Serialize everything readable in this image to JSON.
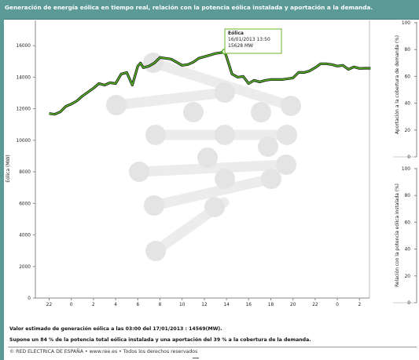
{
  "header": {
    "title": "Generación de energía eólica en tiempo real, relación con la potencia eólica instalada y aportación a la demanda."
  },
  "colors": {
    "header_bg": "#5b9a96",
    "line": "#52b41e",
    "line_shadow": "#1b1b1b",
    "tooltip_border": "#6ab42e",
    "watermark": "#e6e6e6"
  },
  "chart_data": {
    "type": "line",
    "ylabel": "Eólica (MW)",
    "ylim": [
      0,
      17600
    ],
    "yticks": [
      "0",
      "2000",
      "4000",
      "6000",
      "8000",
      "10000",
      "12000",
      "14000",
      "16000"
    ],
    "xticks": [
      "22",
      "0",
      "2",
      "4",
      "6",
      "8",
      "10",
      "12",
      "14",
      "16",
      "18",
      "20",
      "22",
      "0",
      "2"
    ],
    "series": [
      {
        "name": "Eólica",
        "x": [
          22.0,
          22.5,
          23.0,
          23.5,
          24.0,
          24.5,
          25.0,
          25.5,
          26.0,
          26.5,
          27.0,
          27.5,
          28.0,
          28.5,
          29.0,
          29.5,
          30.0,
          30.25,
          30.5,
          31.0,
          31.5,
          32.0,
          32.5,
          33.0,
          33.5,
          34.0,
          34.5,
          35.0,
          35.5,
          36.0,
          36.5,
          37.0,
          37.5,
          37.83,
          38.0,
          38.5,
          39.0,
          39.5,
          40.0,
          40.5,
          41.0,
          41.5,
          42.0,
          42.5,
          43.0,
          43.5,
          44.0,
          44.5,
          45.0,
          45.5,
          46.0,
          46.5,
          47.0,
          47.5,
          48.0,
          48.5,
          49.0,
          49.5,
          50.0,
          50.5,
          51.0
        ],
        "values": [
          11700,
          11650,
          11800,
          12150,
          12300,
          12500,
          12800,
          13050,
          13300,
          13600,
          13500,
          13650,
          13600,
          14200,
          14300,
          13500,
          14700,
          14900,
          14600,
          14700,
          14900,
          15250,
          15200,
          15150,
          14950,
          14750,
          14800,
          14950,
          15200,
          15300,
          15400,
          15500,
          15550,
          15628,
          15300,
          14200,
          14000,
          14050,
          13600,
          13800,
          13700,
          13800,
          13850,
          13850,
          13850,
          13900,
          13950,
          14300,
          14300,
          14400,
          14600,
          14850,
          14850,
          14800,
          14700,
          14750,
          14500,
          14650,
          14550,
          14569,
          14569
        ]
      }
    ],
    "right_axis_top": {
      "label": "Aportación a la cobertura de demanda (%)",
      "ticks": [
        "0",
        "20",
        "40",
        "60",
        "80",
        "100"
      ]
    },
    "right_axis_bottom": {
      "label": "Relación con la potencia eólica instalada (%)",
      "ticks": [
        "0",
        "20",
        "40",
        "60",
        "80",
        "100"
      ]
    },
    "tooltip": {
      "title": "Eólica",
      "date": "16/01/2013 13:50",
      "value": "15628 MW"
    }
  },
  "footer": {
    "line1": "Valor estimado de generación eólica a las  03:00 del 17/01/2013  :  14569(MW).",
    "line2": "Supone un 84 % de la potencia total eólica instalada y una aportación del 39 % a la cobertura de la demanda.",
    "line3": "© RED ELECTRICA DE ESPAÑA • www.ree.es • Todos los derechos reservados"
  }
}
